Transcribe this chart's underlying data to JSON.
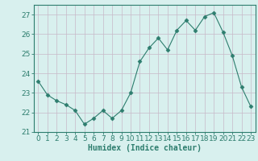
{
  "x": [
    0,
    1,
    2,
    3,
    4,
    5,
    6,
    7,
    8,
    9,
    10,
    11,
    12,
    13,
    14,
    15,
    16,
    17,
    18,
    19,
    20,
    21,
    22,
    23
  ],
  "y": [
    23.6,
    22.9,
    22.6,
    22.4,
    22.1,
    21.4,
    21.7,
    22.1,
    21.7,
    22.1,
    23.0,
    24.6,
    25.3,
    25.8,
    25.2,
    26.2,
    26.7,
    26.2,
    26.9,
    27.1,
    26.1,
    24.9,
    23.3,
    22.3
  ],
  "line_color": "#2d7d6e",
  "marker": "D",
  "marker_size": 2.5,
  "bg_color": "#d8f0ee",
  "grid_color": "#c8b8c8",
  "xlabel": "Humidex (Indice chaleur)",
  "ylabel": "",
  "xlim": [
    -0.5,
    23.5
  ],
  "ylim": [
    21.0,
    27.5
  ],
  "yticks": [
    21,
    22,
    23,
    24,
    25,
    26,
    27
  ],
  "xticks": [
    0,
    1,
    2,
    3,
    4,
    5,
    6,
    7,
    8,
    9,
    10,
    11,
    12,
    13,
    14,
    15,
    16,
    17,
    18,
    19,
    20,
    21,
    22,
    23
  ],
  "axis_color": "#2d7d6e",
  "tick_color": "#2d7d6e",
  "font_size_label": 7.0,
  "font_size_tick": 6.5
}
